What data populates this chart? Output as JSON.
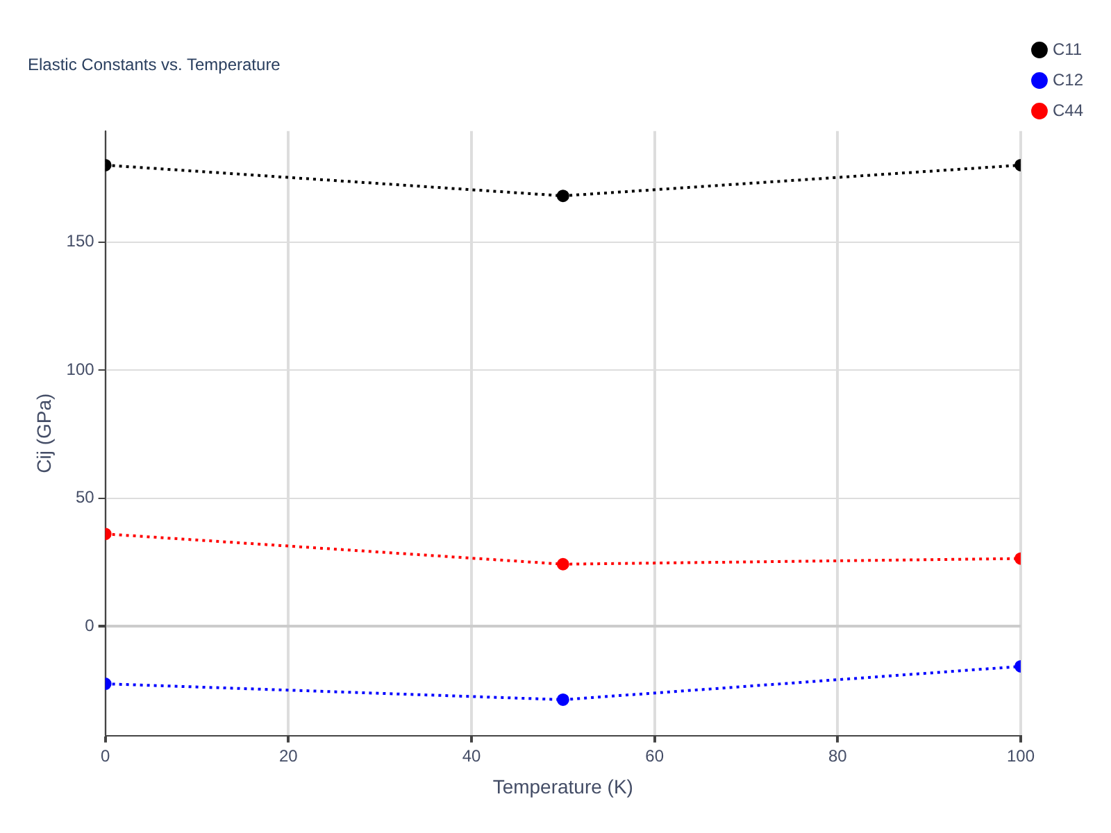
{
  "chart_data": {
    "type": "line",
    "title": "Elastic Constants vs. Temperature",
    "xlabel": "Temperature (K)",
    "ylabel": "Cij (GPa)",
    "x": [
      0,
      50,
      100
    ],
    "series": [
      {
        "name": "C11",
        "color": "#000000",
        "values": [
          180,
          168,
          180
        ]
      },
      {
        "name": "C12",
        "color": "#0000ff",
        "values": [
          -22.5,
          -28.7,
          -15.7
        ]
      },
      {
        "name": "C44",
        "color": "#ff0000",
        "values": [
          36,
          24.2,
          26.4
        ]
      }
    ],
    "xlim": [
      0,
      100
    ],
    "xticks": [
      0,
      20,
      40,
      60,
      80,
      100
    ],
    "ylim": [
      -42.7,
      193.3
    ],
    "yticks": [
      0,
      50,
      100,
      150
    ],
    "grid": true,
    "legend": "top right",
    "marker": "circle",
    "line_style": "dotted"
  }
}
